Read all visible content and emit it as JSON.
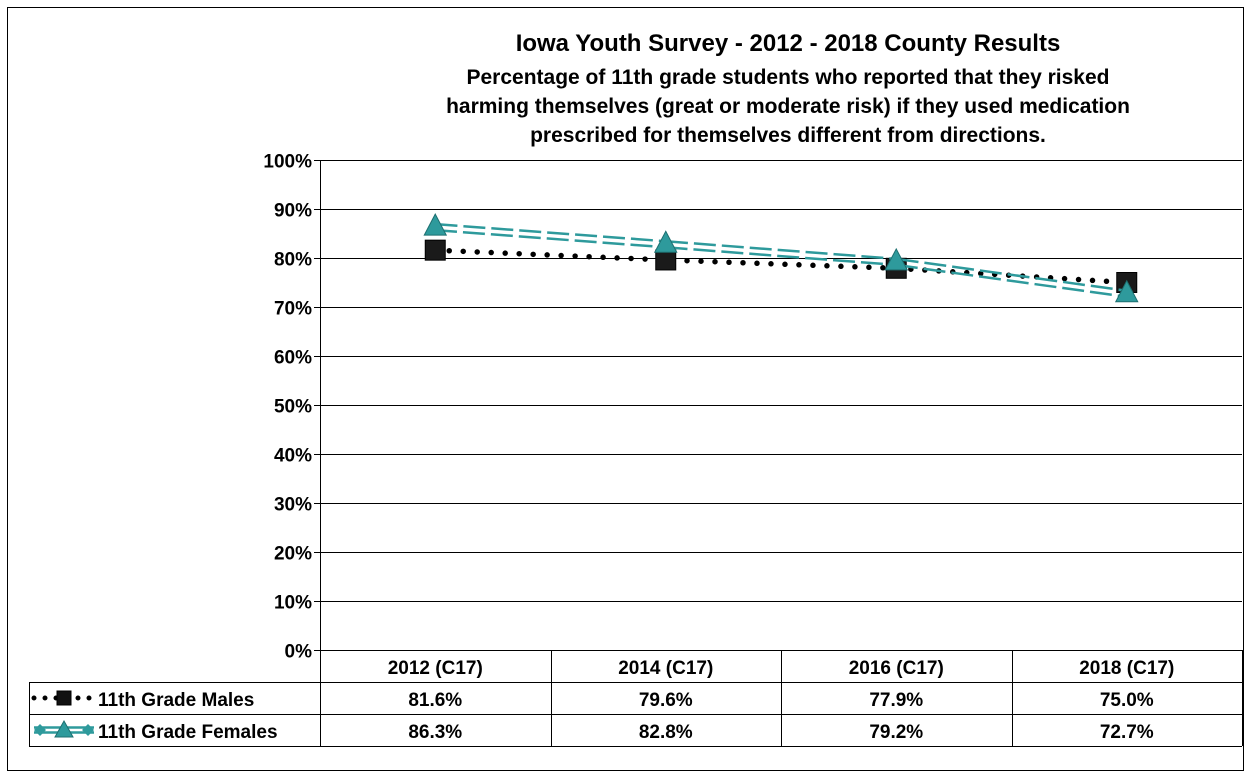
{
  "chart_data": {
    "type": "line",
    "title": "Iowa Youth Survey - 2012 - 2018 County Results",
    "subtitle_lines": [
      "Percentage of 11th grade students who reported that they risked",
      "harming themselves (great or moderate risk) if they used medication",
      "prescribed for themselves different from directions."
    ],
    "categories": [
      "2012 (C17)",
      "2014 (C17)",
      "2016 (C17)",
      "2018 (C17)"
    ],
    "ylim": [
      0,
      100
    ],
    "yticks": [
      "0%",
      "10%",
      "20%",
      "30%",
      "40%",
      "50%",
      "60%",
      "70%",
      "80%",
      "90%",
      "100%"
    ],
    "grid": true,
    "legend": "data-table",
    "series": [
      {
        "name": "11th Grade Males",
        "values": [
          81.6,
          79.6,
          77.9,
          75.0
        ],
        "labels": [
          "81.6%",
          "79.6%",
          "77.9%",
          "75.0%"
        ],
        "color": "#000000",
        "marker": "square",
        "line_style": "dotted"
      },
      {
        "name": "11th Grade Females",
        "values": [
          86.3,
          82.8,
          79.2,
          72.7
        ],
        "labels": [
          "86.3%",
          "82.8%",
          "79.2%",
          "72.7%"
        ],
        "color": "#2e9a9c",
        "marker": "triangle",
        "line_style": "double-dashed"
      }
    ]
  }
}
